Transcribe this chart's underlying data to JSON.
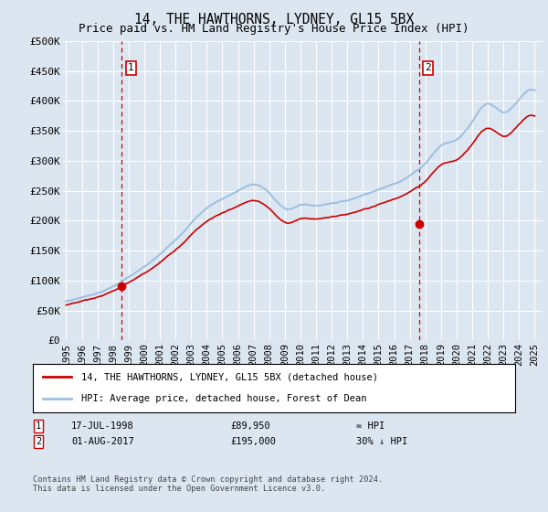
{
  "title": "14, THE HAWTHORNS, LYDNEY, GL15 5BX",
  "subtitle": "Price paid vs. HM Land Registry's House Price Index (HPI)",
  "ylim": [
    0,
    500000
  ],
  "yticks": [
    0,
    50000,
    100000,
    150000,
    200000,
    250000,
    300000,
    350000,
    400000,
    450000,
    500000
  ],
  "ytick_labels": [
    "£0",
    "£50K",
    "£100K",
    "£150K",
    "£200K",
    "£250K",
    "£300K",
    "£350K",
    "£400K",
    "£450K",
    "£500K"
  ],
  "xlim_start": 1994.8,
  "xlim_end": 2025.5,
  "xtick_years": [
    1995,
    1996,
    1997,
    1998,
    1999,
    2000,
    2001,
    2002,
    2003,
    2004,
    2005,
    2006,
    2007,
    2008,
    2009,
    2010,
    2011,
    2012,
    2013,
    2014,
    2015,
    2016,
    2017,
    2018,
    2019,
    2020,
    2021,
    2022,
    2023,
    2024,
    2025
  ],
  "bg_color": "#dce6f1",
  "plot_bg_color": "#dce6f1",
  "grid_color": "#ffffff",
  "hpi_color": "#9bbfe0",
  "price_color": "#cc0000",
  "vline_color": "#cc0000",
  "point1_year": 1998.54,
  "point1_price": 89950,
  "point2_year": 2017.58,
  "point2_price": 195000,
  "legend_label_price": "14, THE HAWTHORNS, LYDNEY, GL15 5BX (detached house)",
  "legend_label_hpi": "HPI: Average price, detached house, Forest of Dean",
  "annotation1_text": "17-JUL-1998",
  "annotation1_price": "£89,950",
  "annotation1_rel": "≈ HPI",
  "annotation2_text": "01-AUG-2017",
  "annotation2_price": "£195,000",
  "annotation2_rel": "30% ↓ HPI",
  "footer": "Contains HM Land Registry data © Crown copyright and database right 2024.\nThis data is licensed under the Open Government Licence v3.0."
}
